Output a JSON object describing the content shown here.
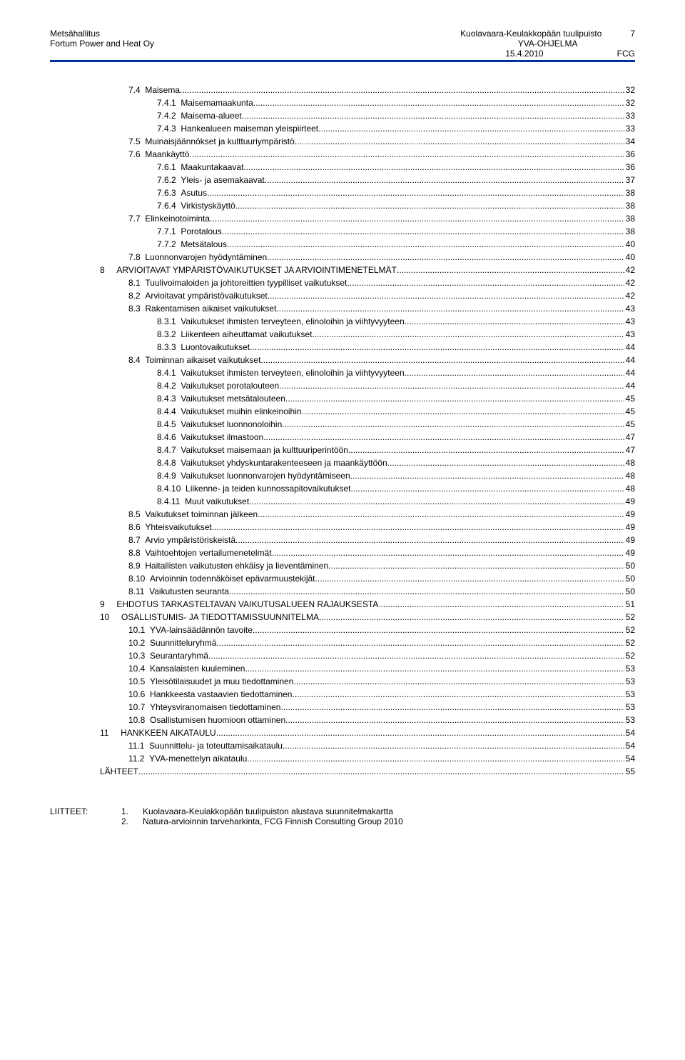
{
  "header": {
    "left_line1": "Metsähallitus",
    "left_line2": "Fortum Power and Heat Oy",
    "center_line1": "Kuolavaara-Keulakkopään tuulipuisto",
    "center_line2": "YVA-OHJELMA",
    "center_line3": "15.4.2010",
    "right_num": "7",
    "right_bottom": "FCG"
  },
  "toc": [
    {
      "lvl": 2,
      "num": "7.4",
      "title": "Maisema",
      "page": "32"
    },
    {
      "lvl": 3,
      "num": "7.4.1",
      "title": "Maisemamaakunta",
      "page": "32"
    },
    {
      "lvl": 3,
      "num": "7.4.2",
      "title": "Maisema-alueet",
      "page": "33"
    },
    {
      "lvl": 3,
      "num": "7.4.3",
      "title": "Hankealueen maiseman yleispiirteet",
      "page": "33"
    },
    {
      "lvl": 2,
      "num": "7.5",
      "title": "Muinaisjäännökset ja kulttuuriympäristö",
      "page": "34"
    },
    {
      "lvl": 2,
      "num": "7.6",
      "title": "Maankäyttö",
      "page": "36"
    },
    {
      "lvl": 3,
      "num": "7.6.1",
      "title": "Maakuntakaavat",
      "page": "36"
    },
    {
      "lvl": 3,
      "num": "7.6.2",
      "title": "Yleis- ja asemakaavat",
      "page": "37"
    },
    {
      "lvl": 3,
      "num": "7.6.3",
      "title": "Asutus",
      "page": "38"
    },
    {
      "lvl": 3,
      "num": "7.6.4",
      "title": "Virkistyskäyttö",
      "page": "38"
    },
    {
      "lvl": 2,
      "num": "7.7",
      "title": "Elinkeinotoiminta",
      "page": "38"
    },
    {
      "lvl": 3,
      "num": "7.7.1",
      "title": "Porotalous",
      "page": "38"
    },
    {
      "lvl": 3,
      "num": "7.7.2",
      "title": "Metsätalous",
      "page": "40"
    },
    {
      "lvl": 2,
      "num": "7.8",
      "title": "Luonnonvarojen hyödyntäminen",
      "page": "40"
    },
    {
      "lvl": 1,
      "num": "8",
      "title": "ARVIOITAVAT YMPÄRISTÖVAIKUTUKSET JA ARVIOINTIMENETELMÄT",
      "page": "42"
    },
    {
      "lvl": 2,
      "num": "8.1",
      "title": "Tuulivoimaloiden ja johtoreittien tyypilliset vaikutukset",
      "page": "42"
    },
    {
      "lvl": 2,
      "num": "8.2",
      "title": "Arvioitavat ympäristövaikutukset",
      "page": "42"
    },
    {
      "lvl": 2,
      "num": "8.3",
      "title": "Rakentamisen aikaiset vaikutukset",
      "page": "43"
    },
    {
      "lvl": 3,
      "num": "8.3.1",
      "title": "Vaikutukset ihmisten terveyteen, elinoloihin ja viihtyvyyteen",
      "page": "43"
    },
    {
      "lvl": 3,
      "num": "8.3.2",
      "title": "Liikenteen aiheuttamat vaikutukset",
      "page": "43"
    },
    {
      "lvl": 3,
      "num": "8.3.3",
      "title": "Luontovaikutukset",
      "page": "44"
    },
    {
      "lvl": 2,
      "num": "8.4",
      "title": "Toiminnan aikaiset vaikutukset",
      "page": "44"
    },
    {
      "lvl": 3,
      "num": "8.4.1",
      "title": "Vaikutukset ihmisten terveyteen, elinoloihin ja viihtyvyyteen",
      "page": "44"
    },
    {
      "lvl": 3,
      "num": "8.4.2",
      "title": "Vaikutukset porotalouteen",
      "page": "44"
    },
    {
      "lvl": 3,
      "num": "8.4.3",
      "title": "Vaikutukset metsätalouteen",
      "page": "45"
    },
    {
      "lvl": 3,
      "num": "8.4.4",
      "title": "Vaikutukset muihin elinkeinoihin",
      "page": "45"
    },
    {
      "lvl": 3,
      "num": "8.4.5",
      "title": "Vaikutukset luonnonoloihin",
      "page": "45"
    },
    {
      "lvl": 3,
      "num": "8.4.6",
      "title": "Vaikutukset ilmastoon",
      "page": "47"
    },
    {
      "lvl": 3,
      "num": "8.4.7",
      "title": "Vaikutukset maisemaan ja kulttuuriperintöön",
      "page": "47"
    },
    {
      "lvl": 3,
      "num": "8.4.8",
      "title": "Vaikutukset yhdyskuntarakenteeseen ja maankäyttöön",
      "page": "48"
    },
    {
      "lvl": 3,
      "num": "8.4.9",
      "title": "Vaikutukset luonnonvarojen hyödyntämiseen",
      "page": "48"
    },
    {
      "lvl": 3,
      "num": "8.4.10",
      "title": "Liikenne- ja teiden kunnossapitovaikutukset",
      "page": "48"
    },
    {
      "lvl": 3,
      "num": "8.4.11",
      "title": "Muut vaikutukset",
      "page": "49"
    },
    {
      "lvl": 2,
      "num": "8.5",
      "title": "Vaikutukset toiminnan jälkeen",
      "page": "49"
    },
    {
      "lvl": 2,
      "num": "8.6",
      "title": "Yhteisvaikutukset",
      "page": "49"
    },
    {
      "lvl": 2,
      "num": "8.7",
      "title": "Arvio ympäristöriskeistä",
      "page": "49"
    },
    {
      "lvl": 2,
      "num": "8.8",
      "title": "Vaihtoehtojen vertailumenetelmät",
      "page": "49"
    },
    {
      "lvl": 2,
      "num": "8.9",
      "title": "Haitallisten vaikutusten ehkäisy ja lieventäminen",
      "page": "50"
    },
    {
      "lvl": 2,
      "num": "8.10",
      "title": "Arvioinnin todennäköiset epävarmuustekijät",
      "page": "50"
    },
    {
      "lvl": 2,
      "num": "8.11",
      "title": "Vaikutusten seuranta",
      "page": "50"
    },
    {
      "lvl": 1,
      "num": "9",
      "title": "EHDOTUS TARKASTELTAVAN VAIKUTUSALUEEN RAJAUKSESTA",
      "page": "51"
    },
    {
      "lvl": 1,
      "num": "10",
      "title": "OSALLISTUMIS- JA TIEDOTTAMISSUUNNITELMA",
      "page": "52"
    },
    {
      "lvl": 2,
      "num": "10.1",
      "title": "YVA-lainsäädännön tavoite",
      "page": "52"
    },
    {
      "lvl": 2,
      "num": "10.2",
      "title": "Suunnitteluryhmä",
      "page": "52"
    },
    {
      "lvl": 2,
      "num": "10.3",
      "title": "Seurantaryhmä",
      "page": "52"
    },
    {
      "lvl": 2,
      "num": "10.4",
      "title": "Kansalaisten kuuleminen",
      "page": "53"
    },
    {
      "lvl": 2,
      "num": "10.5",
      "title": "Yleisötilaisuudet ja muu tiedottaminen",
      "page": "53"
    },
    {
      "lvl": 2,
      "num": "10.6",
      "title": "Hankkeesta vastaavien tiedottaminen",
      "page": "53"
    },
    {
      "lvl": 2,
      "num": "10.7",
      "title": "Yhteysviranomaisen tiedottaminen",
      "page": "53"
    },
    {
      "lvl": 2,
      "num": "10.8",
      "title": "Osallistumisen huomioon ottaminen",
      "page": "53"
    },
    {
      "lvl": 1,
      "num": "11",
      "title": "HANKKEEN AIKATAULU",
      "page": "54"
    },
    {
      "lvl": 2,
      "num": "11.1",
      "title": "Suunnittelu- ja toteuttamisaikataulu",
      "page": "54"
    },
    {
      "lvl": 2,
      "num": "11.2",
      "title": "YVA-menettelyn aikataulu",
      "page": "54"
    },
    {
      "lvl": 0,
      "num": "",
      "title": "LÄHTEET",
      "page": "55"
    }
  ],
  "footer": {
    "label": "LIITTEET:",
    "items": [
      {
        "num": "1.",
        "text": "Kuolavaara-Keulakkopään tuulipuiston alustava suunnitelmakartta"
      },
      {
        "num": "2.",
        "text": "Natura-arvioinnin tarveharkinta, FCG Finnish Consulting Group 2010"
      }
    ]
  }
}
